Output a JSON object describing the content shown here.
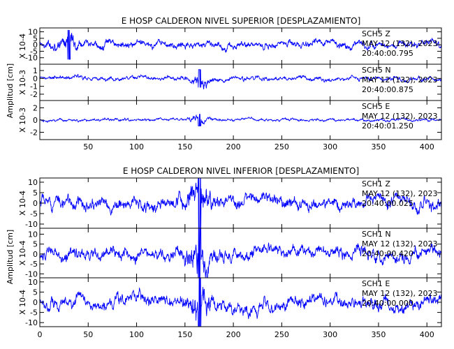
{
  "chart_data": [
    {
      "type": "line",
      "title": "E HOSP CALDERON NIVEL SUPERIOR [DESPLAZAMIENTO]",
      "ylabel": "Amplitud [cm]",
      "xlim": [
        0,
        415
      ],
      "xticks": [
        50,
        100,
        150,
        200,
        250,
        300,
        350,
        400
      ],
      "traces": [
        {
          "scale_label": "X 10-4",
          "ylim": [
            -15,
            13
          ],
          "yticks": [
            10,
            5,
            0,
            -5,
            -10
          ],
          "station": "SCH5 Z",
          "date": "MAY 12 (132), 2023",
          "time": "20:40:00.795",
          "peak_time": 30,
          "typical_amplitude": 3.5
        },
        {
          "scale_label": "X 10-3",
          "ylim": [
            -2.8,
            1.8
          ],
          "yticks": [
            1,
            0,
            -1,
            -2
          ],
          "station": "SCH5 N",
          "date": "MAY 12 (132), 2023",
          "time": "20:40:00.875",
          "peak_time": 165,
          "typical_amplitude": 0.35
        },
        {
          "scale_label": "X 10-3",
          "ylim": [
            -3.2,
            3.2
          ],
          "yticks": [
            2,
            0,
            -2
          ],
          "station": "SCH5 E",
          "date": "MAY 12 (132), 2023",
          "time": "20:40:01.250",
          "peak_time": 165,
          "typical_amplitude": 0.3
        }
      ]
    },
    {
      "type": "line",
      "title": "E HOSP CALDERON NIVEL INFERIOR [DESPLAZAMIENTO]",
      "ylabel": "Amplitud [cm]",
      "xlim": [
        0,
        415
      ],
      "xticks": [
        0,
        50,
        100,
        150,
        200,
        250,
        300,
        350,
        400
      ],
      "traces": [
        {
          "scale_label": "X 10-4",
          "ylim": [
            -12,
            12
          ],
          "yticks": [
            10,
            5,
            0,
            -5,
            -10
          ],
          "station": "SCH1 Z",
          "date": "MAY 12 (132), 2023",
          "time": "20:40:00.025",
          "peak_time": 165,
          "typical_amplitude": 4
        },
        {
          "scale_label": "X 10-4",
          "ylim": [
            -12,
            13
          ],
          "yticks": [
            10,
            5,
            0,
            -5,
            -10
          ],
          "station": "SCH1 N",
          "date": "MAY 12 (132), 2023",
          "time": "20:40:00.420",
          "peak_time": 165,
          "typical_amplitude": 4
        },
        {
          "scale_label": "X 10-4",
          "ylim": [
            -12,
            12
          ],
          "yticks": [
            10,
            5,
            0,
            -5,
            -10
          ],
          "station": "SCH1 E",
          "date": "MAY 12 (132), 2023",
          "time": "20:40:00.000",
          "peak_time": 165,
          "typical_amplitude": 4
        }
      ]
    }
  ],
  "colors": {
    "trace": "#0000ff",
    "axis": "#000000",
    "background": "#ffffff"
  }
}
